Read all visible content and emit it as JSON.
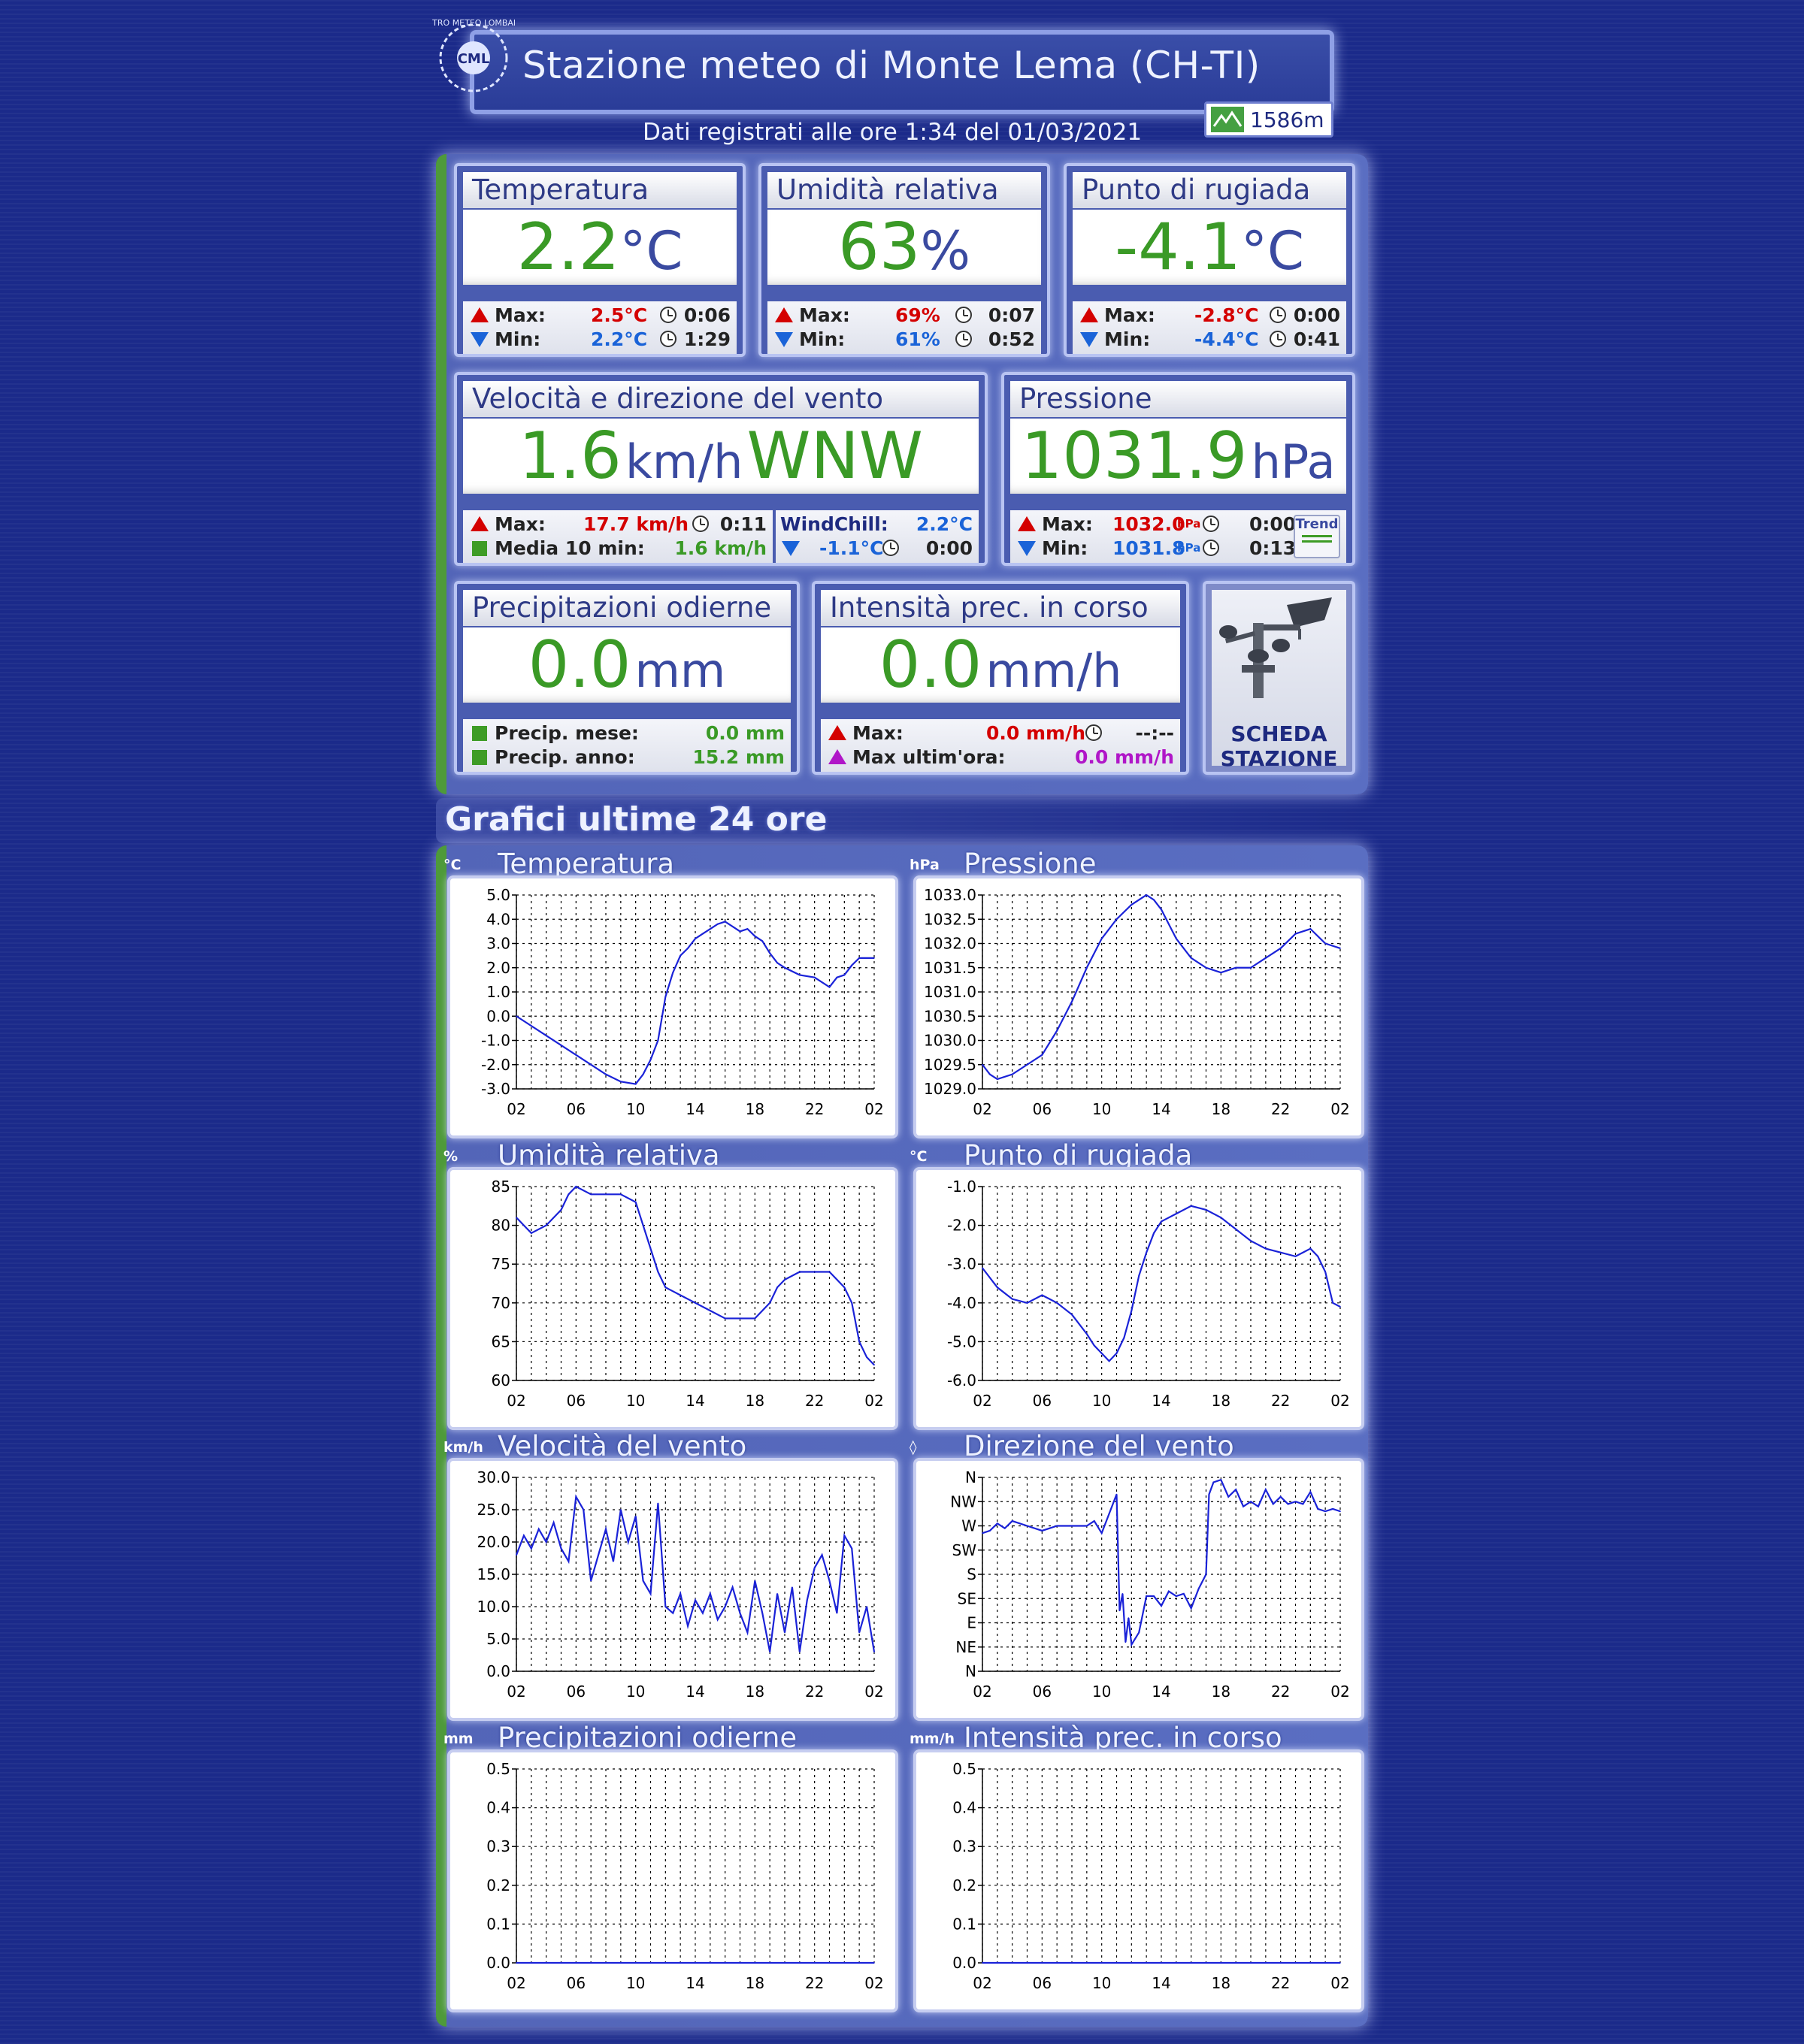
{
  "header": {
    "logo_text": "CENTRO METEO LOMBARDO",
    "logo_short": "CML",
    "title": "Stazione meteo di Monte Lema (CH-TI)",
    "subtitle": "Dati registrati alle ore 1:34 del 01/03/2021",
    "altitude": "1586m"
  },
  "cards": {
    "temperatura": {
      "title": "Temperatura",
      "value": "2.2",
      "unit": "°C",
      "max_label": "Max:",
      "max_value": "2.5°C",
      "max_time": "0:06",
      "min_label": "Min:",
      "min_value": "2.2°C",
      "min_time": "1:29"
    },
    "umidita": {
      "title": "Umidità relativa",
      "value": "63",
      "unit": "%",
      "max_label": "Max:",
      "max_value": "69%",
      "max_time": "0:07",
      "min_label": "Min:",
      "min_value": "61%",
      "min_time": "0:52"
    },
    "rugiada": {
      "title": "Punto di rugiada",
      "value": "-4.1",
      "unit": "°C",
      "max_label": "Max:",
      "max_value": "-2.8°C",
      "max_time": "0:00",
      "min_label": "Min:",
      "min_value": "-4.4°C",
      "min_time": "0:41"
    },
    "vento": {
      "title": "Velocità e direzione del vento",
      "value": "1.6",
      "unit": "km/h",
      "direction": "WNW",
      "max_label": "Max:",
      "max_value": "17.7 km/h",
      "max_time": "0:11",
      "media_label": "Media 10 min:",
      "media_value": "1.6 km/h",
      "windchill_label": "WindChill:",
      "windchill_value": "2.2°C",
      "windchill_min_value": "-1.1°C",
      "windchill_min_time": "0:00"
    },
    "pressione": {
      "title": "Pressione",
      "value": "1031.9",
      "unit": "hPa",
      "max_label": "Max:",
      "max_value": "1032.0",
      "max_unit": "hPa",
      "max_time": "0:00",
      "min_label": "Min:",
      "min_value": "1031.8",
      "min_unit": "hPa",
      "min_time": "0:13",
      "trend_label": "Trend"
    },
    "precipitazioni": {
      "title": "Precipitazioni odierne",
      "value": "0.0",
      "unit": "mm",
      "mese_label": "Precip. mese:",
      "mese_value": "0.0 mm",
      "anno_label": "Precip. anno:",
      "anno_value": "15.2 mm"
    },
    "intensita": {
      "title": "Intensità prec. in corso",
      "value": "0.0",
      "unit": "mm/h",
      "max_label": "Max:",
      "max_value": "0.0 mm/h",
      "max_time": "--:--",
      "ultima_label": "Max ultim'ora:",
      "ultima_value": "0.0 mm/h"
    },
    "scheda": {
      "line1": "SCHEDA",
      "line2": "STAZIONE"
    }
  },
  "graphs_title": "Grafici ultime 24 ore",
  "chart_data": [
    {
      "id": "temp",
      "type": "line",
      "title": "Temperatura",
      "unit_label": "°C",
      "x_ticks": [
        "02",
        "06",
        "10",
        "14",
        "18",
        "22",
        "02"
      ],
      "y_ticks": [
        "5.0",
        "4.0",
        "3.0",
        "2.0",
        "1.0",
        "0.0",
        "-1.0",
        "-2.0",
        "-3.0"
      ],
      "ylim": [
        -3.0,
        5.0
      ],
      "series": [
        {
          "x": [
            0,
            2,
            4,
            6,
            7,
            8,
            8.5,
            9,
            9.5,
            10,
            10.5,
            11,
            11.5,
            12,
            12.5,
            13,
            13.5,
            14,
            14.5,
            15,
            15.5,
            16,
            16.5,
            17,
            17.5,
            18,
            19,
            20,
            21,
            21.5,
            22,
            22.5,
            23,
            24
          ],
          "values": [
            0,
            -0.8,
            -1.6,
            -2.4,
            -2.7,
            -2.8,
            -2.4,
            -1.8,
            -1.0,
            0.8,
            1.8,
            2.5,
            2.8,
            3.2,
            3.4,
            3.6,
            3.8,
            3.9,
            3.7,
            3.5,
            3.6,
            3.3,
            3.1,
            2.6,
            2.2,
            2.0,
            1.7,
            1.6,
            1.2,
            1.6,
            1.7,
            2.1,
            2.4,
            2.4
          ]
        }
      ]
    },
    {
      "id": "press",
      "type": "line",
      "title": "Pressione",
      "unit_label": "hPa",
      "x_ticks": [
        "02",
        "06",
        "10",
        "14",
        "18",
        "22",
        "02"
      ],
      "y_ticks": [
        "1033.0",
        "1032.5",
        "1032.0",
        "1031.5",
        "1031.0",
        "1030.5",
        "1030.0",
        "1029.5",
        "1029.0"
      ],
      "ylim": [
        1029.0,
        1033.0
      ],
      "series": [
        {
          "x": [
            0,
            0.5,
            1,
            2,
            3,
            4,
            5,
            6,
            7,
            8,
            9,
            10,
            11,
            11.5,
            12,
            12.5,
            13,
            14,
            15,
            16,
            17,
            18,
            19,
            20,
            21,
            22,
            23,
            24
          ],
          "values": [
            1029.5,
            1029.3,
            1029.2,
            1029.3,
            1029.5,
            1029.7,
            1030.2,
            1030.8,
            1031.5,
            1032.1,
            1032.5,
            1032.8,
            1033.0,
            1032.9,
            1032.7,
            1032.4,
            1032.1,
            1031.7,
            1031.5,
            1031.4,
            1031.5,
            1031.5,
            1031.7,
            1031.9,
            1032.2,
            1032.3,
            1032.0,
            1031.9
          ]
        }
      ]
    },
    {
      "id": "umid",
      "type": "line",
      "title": "Umidità relativa",
      "unit_label": "%",
      "x_ticks": [
        "02",
        "06",
        "10",
        "14",
        "18",
        "22",
        "02"
      ],
      "y_ticks": [
        "85",
        "80",
        "75",
        "70",
        "65",
        "60"
      ],
      "ylim": [
        60,
        85
      ],
      "series": [
        {
          "x": [
            0,
            0.5,
            1,
            2,
            3,
            3.5,
            4,
            5,
            6,
            7,
            8,
            8.5,
            9,
            9.5,
            10,
            11,
            12,
            13,
            14,
            15,
            16,
            16.5,
            17,
            17.5,
            18,
            19,
            20,
            21,
            22,
            22.5,
            23,
            23.5,
            24
          ],
          "values": [
            81,
            80,
            79,
            80,
            82,
            84,
            85,
            84,
            84,
            84,
            83,
            80,
            77,
            74,
            72,
            71,
            70,
            69,
            68,
            68,
            68,
            69,
            70,
            72,
            73,
            74,
            74,
            74,
            72,
            70,
            65,
            63,
            62
          ]
        }
      ]
    },
    {
      "id": "rugiada",
      "type": "line",
      "title": "Punto di rugiada",
      "unit_label": "°C",
      "x_ticks": [
        "02",
        "06",
        "10",
        "14",
        "18",
        "22",
        "02"
      ],
      "y_ticks": [
        "-1.0",
        "-2.0",
        "-3.0",
        "-4.0",
        "-5.0",
        "-6.0"
      ],
      "ylim": [
        -6.0,
        -1.0
      ],
      "series": [
        {
          "x": [
            0,
            1,
            2,
            3,
            4,
            5,
            6,
            7,
            7.5,
            8,
            8.5,
            9,
            9.5,
            10,
            10.5,
            11,
            11.5,
            12,
            13,
            14,
            15,
            16,
            17,
            18,
            19,
            20,
            21,
            21.5,
            22,
            22.5,
            23,
            23.5,
            24
          ],
          "values": [
            -3.1,
            -3.6,
            -3.9,
            -4.0,
            -3.8,
            -4.0,
            -4.3,
            -4.8,
            -5.1,
            -5.3,
            -5.5,
            -5.3,
            -4.9,
            -4.2,
            -3.3,
            -2.7,
            -2.2,
            -1.9,
            -1.7,
            -1.5,
            -1.6,
            -1.8,
            -2.1,
            -2.4,
            -2.6,
            -2.7,
            -2.8,
            -2.7,
            -2.6,
            -2.8,
            -3.2,
            -4.0,
            -4.1
          ]
        }
      ]
    },
    {
      "id": "vvento",
      "type": "line",
      "title": "Velocità del vento",
      "unit_label": "km/h",
      "x_ticks": [
        "02",
        "06",
        "10",
        "14",
        "18",
        "22",
        "02"
      ],
      "y_ticks": [
        "30.0",
        "25.0",
        "20.0",
        "15.0",
        "10.0",
        "5.0",
        "0.0"
      ],
      "ylim": [
        0.0,
        30.0
      ],
      "series": [
        {
          "x": [
            0,
            0.5,
            1,
            1.5,
            2,
            2.5,
            3,
            3.5,
            4,
            4.5,
            5,
            5.5,
            6,
            6.5,
            7,
            7.5,
            8,
            8.5,
            9,
            9.5,
            10,
            10.5,
            11,
            11.5,
            12,
            12.5,
            13,
            13.5,
            14,
            14.5,
            15,
            15.5,
            16,
            16.5,
            17,
            17.5,
            18,
            18.5,
            19,
            19.5,
            20,
            20.5,
            21,
            21.5,
            22,
            22.5,
            23,
            23.5,
            24
          ],
          "values": [
            18,
            21,
            19,
            22,
            20,
            23,
            19,
            17,
            27,
            25,
            14,
            18,
            22,
            17,
            25,
            20,
            24,
            14,
            12,
            26,
            10,
            9,
            12,
            7,
            11,
            9,
            12,
            8,
            10,
            13,
            9,
            6,
            14,
            9,
            3,
            12,
            6,
            13,
            3,
            11,
            16,
            18,
            14,
            9,
            21,
            19,
            6,
            10,
            3
          ]
        }
      ]
    },
    {
      "id": "dvento",
      "type": "line",
      "title": "Direzione del vento",
      "unit_label": "◊",
      "x_ticks": [
        "02",
        "06",
        "10",
        "14",
        "18",
        "22",
        "02"
      ],
      "y_ticks": [
        "N",
        "NW",
        "W",
        "SW",
        "S",
        "SE",
        "E",
        "NE",
        "N"
      ],
      "ylim": [
        0,
        8
      ],
      "series": [
        {
          "x": [
            0,
            0.5,
            1,
            1.5,
            2,
            3,
            4,
            5,
            6,
            7,
            7.5,
            8,
            8.5,
            9,
            9.2,
            9.4,
            9.6,
            9.8,
            10,
            10.5,
            11,
            11.5,
            12,
            12.5,
            13,
            13.5,
            14,
            14.5,
            15,
            15.2,
            15.5,
            16,
            16.5,
            17,
            17.5,
            18,
            18.5,
            19,
            19.5,
            20,
            20.5,
            21,
            21.5,
            22,
            22.5,
            23,
            23.5,
            24
          ],
          "values": [
            5.7,
            5.8,
            6.1,
            5.9,
            6.2,
            6.0,
            5.8,
            6.0,
            6.0,
            6.0,
            6.2,
            5.7,
            6.5,
            7.3,
            2.5,
            3.2,
            1.2,
            2.2,
            1.1,
            1.6,
            3.1,
            3.1,
            2.7,
            3.3,
            3.1,
            3.2,
            2.6,
            3.4,
            4.0,
            7.3,
            7.8,
            7.9,
            7.2,
            7.5,
            6.8,
            7.0,
            6.8,
            7.5,
            6.9,
            7.2,
            6.9,
            7.0,
            6.9,
            7.4,
            6.7,
            6.6,
            6.7,
            6.6
          ]
        }
      ]
    },
    {
      "id": "prec",
      "type": "line",
      "title": "Precipitazioni odierne",
      "unit_label": "mm",
      "x_ticks": [
        "02",
        "06",
        "10",
        "14",
        "18",
        "22",
        "02"
      ],
      "y_ticks": [
        "0.5",
        "0.4",
        "0.3",
        "0.2",
        "0.1",
        "0.0"
      ],
      "ylim": [
        0.0,
        0.5
      ],
      "series": [
        {
          "x": [
            0,
            24
          ],
          "values": [
            0,
            0
          ]
        }
      ]
    },
    {
      "id": "intens",
      "type": "line",
      "title": "Intensità prec. in corso",
      "unit_label": "mm/h",
      "x_ticks": [
        "02",
        "06",
        "10",
        "14",
        "18",
        "22",
        "02"
      ],
      "y_ticks": [
        "0.5",
        "0.4",
        "0.3",
        "0.2",
        "0.1",
        "0.0"
      ],
      "ylim": [
        0.0,
        0.5
      ],
      "series": [
        {
          "x": [
            0,
            24
          ],
          "values": [
            0,
            0
          ]
        }
      ]
    }
  ]
}
